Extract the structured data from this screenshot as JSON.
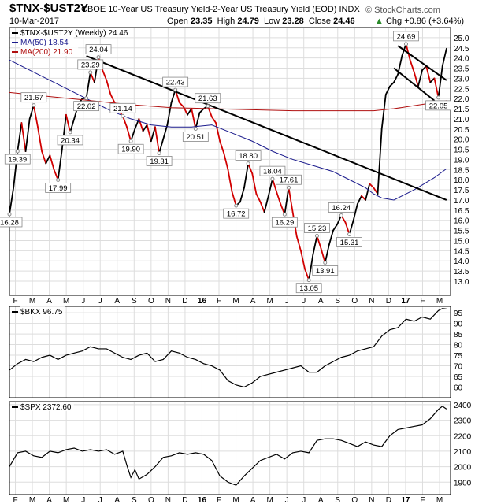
{
  "header": {
    "symbol": "$TNX-$UST2Y",
    "description": "CBOE 10-Year US Treasury Yield-2-Year US Treasury Yield (EOD)",
    "exchange": "INDX",
    "brand": "© StockCharts.com",
    "date": "10-Mar-2017",
    "open_label": "Open",
    "open": "23.35",
    "high_label": "High",
    "high": "24.79",
    "low_label": "Low",
    "low": "23.28",
    "close_label": "Close",
    "close": "24.46",
    "change": "Chg +0.86 (+3.64%)",
    "change_icon": "up-triangle-icon"
  },
  "colors": {
    "price": "#000000",
    "swing": "#d10000",
    "ma50": "#1a1a8c",
    "ma200": "#b01010",
    "trend": "#000000",
    "grid": "#dddddd"
  },
  "chart_data": [
    {
      "type": "line",
      "legend": [
        "$TNX-$UST2Y (Weekly) 24.46",
        "MA(50) 18.54",
        "MA(200) 21.90"
      ],
      "legend_placement": "top-left",
      "ylim": [
        12.3,
        25.5
      ],
      "y_ticks": [
        13.0,
        13.5,
        14.0,
        14.5,
        15.0,
        15.5,
        16.0,
        16.5,
        17.0,
        17.5,
        18.0,
        18.5,
        19.0,
        19.5,
        20.0,
        20.5,
        21.0,
        21.5,
        22.0,
        22.5,
        23.0,
        23.5,
        24.0,
        24.5,
        25.0
      ],
      "x_ticks": [
        "F",
        "M",
        "A",
        "M",
        "J",
        "J",
        "A",
        "S",
        "O",
        "N",
        "D",
        "16",
        "F",
        "M",
        "A",
        "M",
        "J",
        "J",
        "A",
        "S",
        "O",
        "N",
        "D",
        "17",
        "F",
        "M"
      ],
      "x_range": [
        0,
        109
      ],
      "series": [
        {
          "name": "$TNX-$UST2Y (Weekly) 24.46",
          "role": "price",
          "x": [
            0,
            1,
            2,
            3,
            4,
            5,
            6,
            7,
            8,
            9,
            10,
            11,
            12,
            13,
            14,
            15,
            16,
            17,
            18,
            19,
            20,
            21,
            22,
            23,
            24,
            25,
            26,
            27,
            28,
            29,
            30,
            31,
            32,
            33,
            34,
            35,
            36,
            37,
            38,
            39,
            40,
            41,
            42,
            43,
            44,
            45,
            46,
            47,
            48,
            49,
            50,
            51,
            52,
            53,
            54,
            55,
            56,
            57,
            58,
            59,
            60,
            61,
            62,
            63,
            64,
            65,
            66,
            67,
            68,
            69,
            70,
            71,
            72,
            73,
            74,
            75,
            76,
            77,
            78,
            79,
            80,
            81,
            82,
            83,
            84,
            85,
            86,
            87,
            88,
            89,
            90,
            91,
            92,
            93,
            94,
            95,
            96,
            97,
            98,
            99,
            100,
            101,
            102,
            103,
            104,
            105,
            106,
            107,
            108
          ],
          "y": [
            16.3,
            17.6,
            19.4,
            20.8,
            19.4,
            21.0,
            21.67,
            20.6,
            19.4,
            18.8,
            19.2,
            18.5,
            17.99,
            19.5,
            21.2,
            20.34,
            21.0,
            21.7,
            22.0,
            22.02,
            23.29,
            22.8,
            24.04,
            23.4,
            22.9,
            22.2,
            21.8,
            21.4,
            21.14,
            20.6,
            19.9,
            20.5,
            21.0,
            20.4,
            20.7,
            19.9,
            20.6,
            19.31,
            20.0,
            20.7,
            21.8,
            22.43,
            21.8,
            21.6,
            21.2,
            21.5,
            20.51,
            21.3,
            21.5,
            21.63,
            21.1,
            20.8,
            19.9,
            19.3,
            18.5,
            17.4,
            16.72,
            16.9,
            17.6,
            18.8,
            18.3,
            17.3,
            16.9,
            16.4,
            17.2,
            18.04,
            17.4,
            16.8,
            16.29,
            17.61,
            16.4,
            15.2,
            14.5,
            13.6,
            13.05,
            14.3,
            15.23,
            14.6,
            13.91,
            14.8,
            15.5,
            15.8,
            16.24,
            15.9,
            15.31,
            16.0,
            16.8,
            17.2,
            17.0,
            17.8,
            17.6,
            17.3,
            20.5,
            22.2,
            22.6,
            22.8,
            23.2,
            24.1,
            24.69,
            23.9,
            23.3,
            22.6,
            23.4,
            23.6,
            22.8,
            23.0,
            22.05,
            23.6,
            24.46
          ]
        },
        {
          "name": "MA(50) 18.54",
          "role": "ma50",
          "x": [
            0,
            5,
            10,
            15,
            20,
            25,
            30,
            35,
            40,
            45,
            50,
            55,
            60,
            65,
            70,
            75,
            80,
            85,
            88,
            90,
            92,
            95,
            100,
            105,
            108
          ],
          "y": [
            23.9,
            23.4,
            22.9,
            22.4,
            21.9,
            21.4,
            21.0,
            20.7,
            20.6,
            20.6,
            20.7,
            20.3,
            19.9,
            19.4,
            19.0,
            18.7,
            18.4,
            17.9,
            17.6,
            17.3,
            17.1,
            17.0,
            17.5,
            18.1,
            18.54
          ]
        },
        {
          "name": "MA(200) 21.90",
          "role": "ma200",
          "x": [
            0,
            10,
            20,
            30,
            40,
            50,
            60,
            70,
            80,
            90,
            95,
            100,
            105,
            108
          ],
          "y": [
            22.3,
            22.1,
            21.9,
            21.7,
            21.55,
            21.5,
            21.45,
            21.4,
            21.4,
            21.4,
            21.5,
            21.65,
            21.8,
            21.9
          ]
        },
        {
          "name": "",
          "role": "trend",
          "x": [
            19,
            108
          ],
          "y": [
            24.1,
            17.0
          ]
        },
        {
          "name": "",
          "role": "trend",
          "x": [
            96,
            108
          ],
          "y": [
            24.6,
            22.9
          ]
        },
        {
          "name": "",
          "role": "trend",
          "x": [
            95,
            105
          ],
          "y": [
            23.5,
            21.9
          ]
        }
      ],
      "annotations": [
        {
          "x": 0,
          "y": 16.3,
          "text": "16.28"
        },
        {
          "x": 2,
          "y": 19.4,
          "text": "19.39"
        },
        {
          "x": 6,
          "y": 21.67,
          "text": "21.67"
        },
        {
          "x": 12,
          "y": 17.99,
          "text": "17.99"
        },
        {
          "x": 15,
          "y": 20.34,
          "text": "20.34"
        },
        {
          "x": 19,
          "y": 22.02,
          "text": "22.02"
        },
        {
          "x": 20,
          "y": 23.29,
          "text": "23.29"
        },
        {
          "x": 22,
          "y": 24.04,
          "text": "24.04"
        },
        {
          "x": 28,
          "y": 21.14,
          "text": "21.14"
        },
        {
          "x": 30,
          "y": 19.9,
          "text": "19.90"
        },
        {
          "x": 37,
          "y": 19.31,
          "text": "19.31"
        },
        {
          "x": 41,
          "y": 22.43,
          "text": "22.43"
        },
        {
          "x": 46,
          "y": 20.51,
          "text": "20.51"
        },
        {
          "x": 49,
          "y": 21.63,
          "text": "21.63"
        },
        {
          "x": 56,
          "y": 16.72,
          "text": "16.72"
        },
        {
          "x": 59,
          "y": 18.8,
          "text": "18.80"
        },
        {
          "x": 65,
          "y": 18.04,
          "text": "18.04"
        },
        {
          "x": 68,
          "y": 16.29,
          "text": "16.29"
        },
        {
          "x": 69,
          "y": 17.61,
          "text": "17.61"
        },
        {
          "x": 74,
          "y": 13.05,
          "text": "13.05"
        },
        {
          "x": 76,
          "y": 15.23,
          "text": "15.23"
        },
        {
          "x": 78,
          "y": 13.91,
          "text": "13.91"
        },
        {
          "x": 82,
          "y": 16.24,
          "text": "16.24"
        },
        {
          "x": 84,
          "y": 15.31,
          "text": "15.31"
        },
        {
          "x": 98,
          "y": 24.69,
          "text": "24.69"
        },
        {
          "x": 106,
          "y": 22.05,
          "text": "22.05"
        }
      ]
    },
    {
      "type": "line",
      "legend": [
        "$BKX 96.75"
      ],
      "legend_placement": "top-left",
      "ylim": [
        55,
        98
      ],
      "y_ticks": [
        60,
        65,
        70,
        75,
        80,
        85,
        90,
        95
      ],
      "series": [
        {
          "name": "$BKX 96.75",
          "role": "price",
          "x": [
            0,
            2,
            4,
            6,
            8,
            10,
            12,
            14,
            16,
            18,
            20,
            22,
            24,
            26,
            28,
            30,
            32,
            34,
            36,
            38,
            40,
            42,
            44,
            46,
            48,
            50,
            52,
            54,
            56,
            58,
            60,
            62,
            64,
            66,
            68,
            70,
            72,
            74,
            76,
            78,
            80,
            82,
            84,
            86,
            88,
            90,
            92,
            94,
            96,
            98,
            100,
            102,
            104,
            106,
            107,
            108
          ],
          "y": [
            68,
            71,
            73,
            72,
            74,
            75,
            73,
            75,
            76,
            77,
            79,
            78,
            78,
            76,
            74,
            73,
            75,
            76,
            72,
            73,
            77,
            76,
            74,
            73,
            71,
            70,
            68,
            63,
            61,
            60,
            62,
            65,
            66,
            67,
            68,
            69,
            70,
            67,
            67,
            70,
            72,
            74,
            75,
            77,
            78,
            79,
            84,
            87,
            88,
            92,
            91,
            93,
            92,
            96,
            97,
            96.75
          ]
        }
      ]
    },
    {
      "type": "line",
      "legend": [
        "$SPX 2372.60"
      ],
      "legend_placement": "top-left",
      "ylim": [
        1820,
        2420
      ],
      "y_ticks": [
        1900,
        2000,
        2100,
        2200,
        2300,
        2400
      ],
      "series": [
        {
          "name": "$SPX 2372.60",
          "role": "price",
          "x": [
            0,
            2,
            4,
            6,
            8,
            10,
            12,
            14,
            16,
            18,
            20,
            22,
            24,
            26,
            28,
            29,
            30,
            31,
            32,
            34,
            36,
            38,
            40,
            42,
            44,
            46,
            48,
            50,
            52,
            54,
            56,
            58,
            60,
            62,
            64,
            66,
            68,
            70,
            72,
            74,
            76,
            78,
            80,
            82,
            84,
            86,
            88,
            90,
            92,
            94,
            96,
            98,
            100,
            102,
            104,
            106,
            107,
            108
          ],
          "y": [
            2000,
            2090,
            2100,
            2070,
            2060,
            2100,
            2090,
            2110,
            2120,
            2100,
            2110,
            2100,
            2110,
            2080,
            2100,
            2010,
            1930,
            1980,
            1920,
            1950,
            2000,
            2060,
            2070,
            2090,
            2080,
            2090,
            2080,
            2040,
            1940,
            1900,
            1880,
            1940,
            1990,
            2040,
            2060,
            2080,
            2050,
            2090,
            2100,
            2090,
            2170,
            2180,
            2180,
            2170,
            2150,
            2130,
            2160,
            2140,
            2130,
            2200,
            2240,
            2250,
            2260,
            2270,
            2310,
            2370,
            2390,
            2372.6
          ]
        }
      ]
    }
  ]
}
